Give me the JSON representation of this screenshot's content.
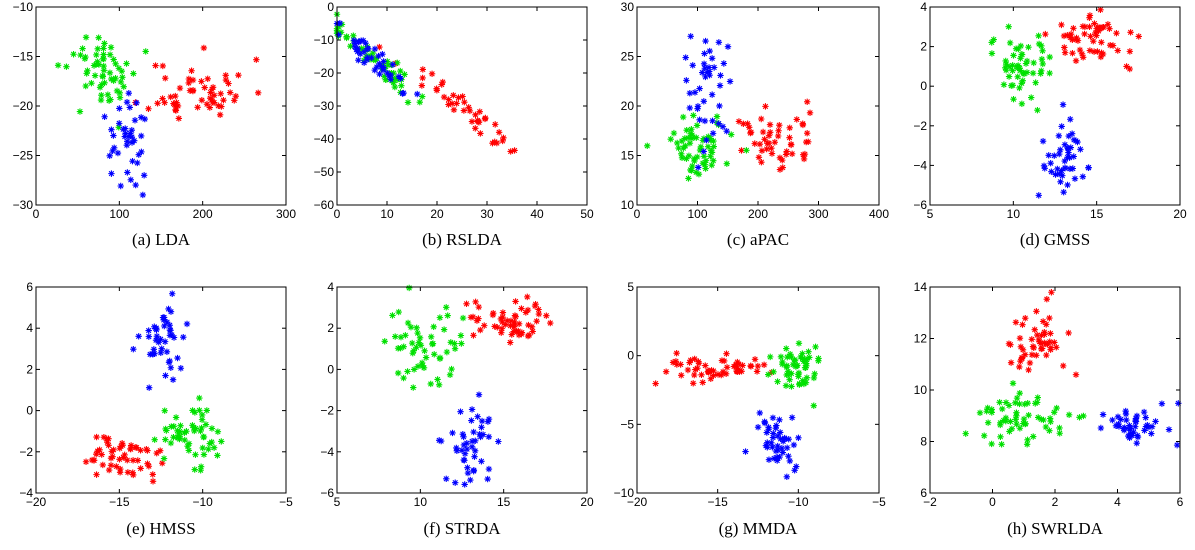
{
  "figure": {
    "captions": [
      "(a) LDA",
      "(b) RSLDA",
      "(c) aPAC",
      "(d) GMSS",
      "(e) HMSS",
      "(f) STRDA",
      "(g) MMDA",
      "(h) SWRLDA"
    ]
  },
  "colors": {
    "class1": "#ff0000",
    "class2": "#00e000",
    "class3": "#0000ff"
  },
  "chart_data": [
    {
      "type": "scatter",
      "caption": "(a) LDA",
      "xlim": [
        0,
        300
      ],
      "ylim": [
        -30,
        -10
      ],
      "xticks": [
        0,
        100,
        200,
        300
      ],
      "yticks": [
        -30,
        -25,
        -20,
        -15,
        -10
      ],
      "series": [
        {
          "color": "#ff0000",
          "clusters": [
            {
              "cx": 195,
              "cy": -18.5,
              "sx": 30,
              "sy": 1.6,
              "n": 55,
              "seed": 11
            }
          ]
        },
        {
          "color": "#00e000",
          "clusters": [
            {
              "cx": 85,
              "cy": -16.6,
              "sx": 22,
              "sy": 1.8,
              "n": 58,
              "seed": 12
            }
          ]
        },
        {
          "color": "#0000ff",
          "clusters": [
            {
              "cx": 110,
              "cy": -23.5,
              "sx": 12,
              "sy": 2.3,
              "n": 40,
              "seed": 13
            }
          ]
        }
      ]
    },
    {
      "type": "scatter",
      "caption": "(b) RSLDA",
      "xlim": [
        0,
        50
      ],
      "ylim": [
        -60,
        0
      ],
      "xticks": [
        0,
        10,
        20,
        30,
        40,
        50
      ],
      "yticks": [
        -60,
        -50,
        -40,
        -30,
        -20,
        -10,
        0
      ],
      "series": [
        {
          "color": "#ff0000",
          "clusters": [
            {
              "cx": 27,
              "cy": -33,
              "sx": 6,
              "sy": 0,
              "slope": -1.17,
              "intercept": -1.5,
              "noise": 2.0,
              "n": 42,
              "seed": 21
            }
          ]
        },
        {
          "color": "#00e000",
          "clusters": [
            {
              "cx": 7,
              "cy": -15,
              "sx": 4.5,
              "sy": 0,
              "slope": -1.2,
              "intercept": -7,
              "noise": 1.8,
              "n": 55,
              "seed": 22
            }
          ]
        },
        {
          "color": "#0000ff",
          "clusters": [
            {
              "cx": 8,
              "cy": -16,
              "sx": 3.5,
              "sy": 0,
              "slope": -1.3,
              "intercept": -6.5,
              "noise": 1.6,
              "n": 45,
              "seed": 23
            }
          ]
        }
      ]
    },
    {
      "type": "scatter",
      "caption": "(c) aPAC",
      "xlim": [
        0,
        400
      ],
      "ylim": [
        10,
        30
      ],
      "xticks": [
        0,
        100,
        200,
        300,
        400
      ],
      "yticks": [
        10,
        15,
        20,
        25,
        30
      ],
      "series": [
        {
          "color": "#ff0000",
          "clusters": [
            {
              "cx": 225,
              "cy": 16.5,
              "sx": 35,
              "sy": 1.6,
              "n": 50,
              "seed": 31
            }
          ]
        },
        {
          "color": "#00e000",
          "clusters": [
            {
              "cx": 100,
              "cy": 16,
              "sx": 30,
              "sy": 1.5,
              "n": 60,
              "seed": 32
            }
          ]
        },
        {
          "color": "#0000ff",
          "clusters": [
            {
              "cx": 115,
              "cy": 21,
              "sx": 18,
              "sy": 3.2,
              "n": 42,
              "seed": 33
            }
          ]
        }
      ]
    },
    {
      "type": "scatter",
      "caption": "(d) GMSS",
      "xlim": [
        5,
        20
      ],
      "ylim": [
        -6,
        4
      ],
      "xticks": [
        5,
        10,
        15,
        20
      ],
      "yticks": [
        -6,
        -4,
        -2,
        0,
        2,
        4
      ],
      "series": [
        {
          "color": "#ff0000",
          "clusters": [
            {
              "cx": 15.2,
              "cy": 2.4,
              "sx": 1.4,
              "sy": 0.6,
              "n": 55,
              "seed": 41
            }
          ]
        },
        {
          "color": "#00e000",
          "clusters": [
            {
              "cx": 10.3,
              "cy": 1.2,
              "sx": 1.0,
              "sy": 0.9,
              "n": 55,
              "seed": 42
            }
          ]
        },
        {
          "color": "#0000ff",
          "clusters": [
            {
              "cx": 12.8,
              "cy": -3.5,
              "sx": 0.8,
              "sy": 1.1,
              "n": 45,
              "seed": 43
            }
          ]
        }
      ]
    },
    {
      "type": "scatter",
      "caption": "(e) HMSS",
      "xlim": [
        -20,
        -5
      ],
      "ylim": [
        -4,
        6
      ],
      "xticks": [
        -20,
        -15,
        -10,
        -5
      ],
      "yticks": [
        -4,
        -2,
        0,
        2,
        4,
        6
      ],
      "series": [
        {
          "color": "#ff0000",
          "clusters": [
            {
              "cx": -15,
              "cy": -2.3,
              "sx": 1.3,
              "sy": 0.55,
              "n": 55,
              "seed": 51
            }
          ]
        },
        {
          "color": "#00e000",
          "clusters": [
            {
              "cx": -10.6,
              "cy": -1.3,
              "sx": 0.9,
              "sy": 0.8,
              "n": 55,
              "seed": 52
            }
          ]
        },
        {
          "color": "#0000ff",
          "clusters": [
            {
              "cx": -12.3,
              "cy": 3.5,
              "sx": 0.7,
              "sy": 1.0,
              "n": 45,
              "seed": 53
            }
          ]
        }
      ]
    },
    {
      "type": "scatter",
      "caption": "(f) STRDA",
      "xlim": [
        5,
        20
      ],
      "ylim": [
        -6,
        4
      ],
      "xticks": [
        5,
        10,
        15,
        20
      ],
      "yticks": [
        -6,
        -4,
        -2,
        0,
        2,
        4
      ],
      "series": [
        {
          "color": "#ff0000",
          "clusters": [
            {
              "cx": 15.2,
              "cy": 2.4,
              "sx": 1.4,
              "sy": 0.6,
              "n": 55,
              "seed": 61
            }
          ]
        },
        {
          "color": "#00e000",
          "clusters": [
            {
              "cx": 10.3,
              "cy": 1.2,
              "sx": 1.0,
              "sy": 0.9,
              "n": 55,
              "seed": 62
            }
          ]
        },
        {
          "color": "#0000ff",
          "clusters": [
            {
              "cx": 12.8,
              "cy": -3.6,
              "sx": 0.8,
              "sy": 1.1,
              "n": 45,
              "seed": 63
            }
          ]
        }
      ]
    },
    {
      "type": "scatter",
      "caption": "(g) MMDA",
      "xlim": [
        -20,
        -5
      ],
      "ylim": [
        -10,
        5
      ],
      "xticks": [
        -20,
        -15,
        -10,
        -5
      ],
      "yticks": [
        -10,
        -5,
        0,
        5
      ],
      "series": [
        {
          "color": "#ff0000",
          "clusters": [
            {
              "cx": -15,
              "cy": -1.0,
              "sx": 1.8,
              "sy": 0.5,
              "n": 55,
              "seed": 71
            }
          ]
        },
        {
          "color": "#00e000",
          "clusters": [
            {
              "cx": -10.2,
              "cy": -1.0,
              "sx": 0.8,
              "sy": 0.8,
              "n": 55,
              "seed": 72
            }
          ]
        },
        {
          "color": "#0000ff",
          "clusters": [
            {
              "cx": -11.2,
              "cy": -6.0,
              "sx": 0.7,
              "sy": 1.1,
              "n": 45,
              "seed": 73
            }
          ]
        }
      ]
    },
    {
      "type": "scatter",
      "caption": "(h) SWRLDA",
      "xlim": [
        -2,
        6
      ],
      "ylim": [
        6,
        14
      ],
      "xticks": [
        -2,
        0,
        2,
        4,
        6
      ],
      "yticks": [
        6,
        8,
        10,
        12,
        14
      ],
      "series": [
        {
          "color": "#ff0000",
          "clusters": [
            {
              "cx": 1.4,
              "cy": 11.9,
              "sx": 0.4,
              "sy": 0.8,
              "n": 50,
              "seed": 81
            }
          ]
        },
        {
          "color": "#00e000",
          "clusters": [
            {
              "cx": 1.0,
              "cy": 8.9,
              "sx": 0.75,
              "sy": 0.5,
              "n": 60,
              "seed": 82
            }
          ]
        },
        {
          "color": "#0000ff",
          "clusters": [
            {
              "cx": 4.6,
              "cy": 8.6,
              "sx": 0.55,
              "sy": 0.35,
              "n": 45,
              "seed": 83
            }
          ]
        }
      ]
    }
  ]
}
